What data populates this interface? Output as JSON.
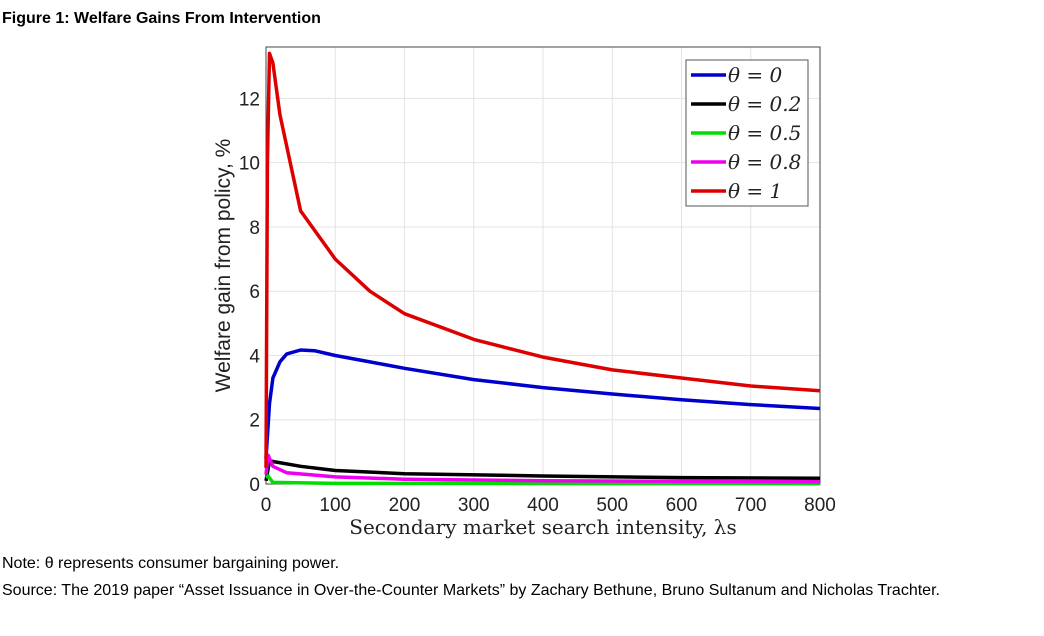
{
  "figure_title": "Figure 1: Welfare Gains From Intervention",
  "note": "Note: θ represents consumer bargaining power.",
  "source": "Source: The 2019 paper “Asset Issuance in Over-the-Counter Markets” by Zachary Bethune, Bruno Sultanum and Nicholas Trachter.",
  "chart_data": {
    "type": "line",
    "title": "",
    "xlabel": "Secondary market search intensity, λs",
    "ylabel": "Welfare gain from policy, %",
    "xlim": [
      0,
      800
    ],
    "ylim": [
      0,
      13.6
    ],
    "xticks": [
      0,
      100,
      200,
      300,
      400,
      500,
      600,
      700,
      800
    ],
    "yticks": [
      0,
      2,
      4,
      6,
      8,
      10,
      12
    ],
    "grid": true,
    "legend_position": "top-right",
    "series": [
      {
        "name": "θ = 0",
        "color": "#0000cc",
        "x": [
          0,
          5,
          10,
          20,
          30,
          50,
          70,
          100,
          150,
          200,
          300,
          400,
          500,
          600,
          700,
          800
        ],
        "y": [
          0.8,
          2.5,
          3.3,
          3.8,
          4.05,
          4.17,
          4.15,
          4.0,
          3.8,
          3.6,
          3.25,
          3.0,
          2.8,
          2.62,
          2.47,
          2.35
        ]
      },
      {
        "name": "θ = 0.2",
        "color": "#000000",
        "x": [
          0,
          5,
          10,
          50,
          100,
          200,
          400,
          600,
          800
        ],
        "y": [
          0.1,
          0.72,
          0.7,
          0.55,
          0.42,
          0.32,
          0.25,
          0.2,
          0.18
        ]
      },
      {
        "name": "θ = 0.5",
        "color": "#00dd00",
        "x": [
          0,
          3,
          10,
          100,
          800
        ],
        "y": [
          0.2,
          0.25,
          0.05,
          0.02,
          0.01
        ]
      },
      {
        "name": "θ = 0.8",
        "color": "#ee00ee",
        "x": [
          0,
          3,
          10,
          30,
          100,
          200,
          400,
          800
        ],
        "y": [
          0.3,
          0.9,
          0.55,
          0.35,
          0.22,
          0.15,
          0.1,
          0.07
        ]
      },
      {
        "name": "θ = 1",
        "color": "#dd0000",
        "x": [
          0,
          2,
          5,
          10,
          20,
          50,
          100,
          150,
          200,
          300,
          400,
          500,
          600,
          700,
          800
        ],
        "y": [
          0.5,
          10,
          13.4,
          13.1,
          11.5,
          8.5,
          7.0,
          6.0,
          5.3,
          4.5,
          3.95,
          3.55,
          3.3,
          3.05,
          2.9
        ]
      }
    ]
  }
}
